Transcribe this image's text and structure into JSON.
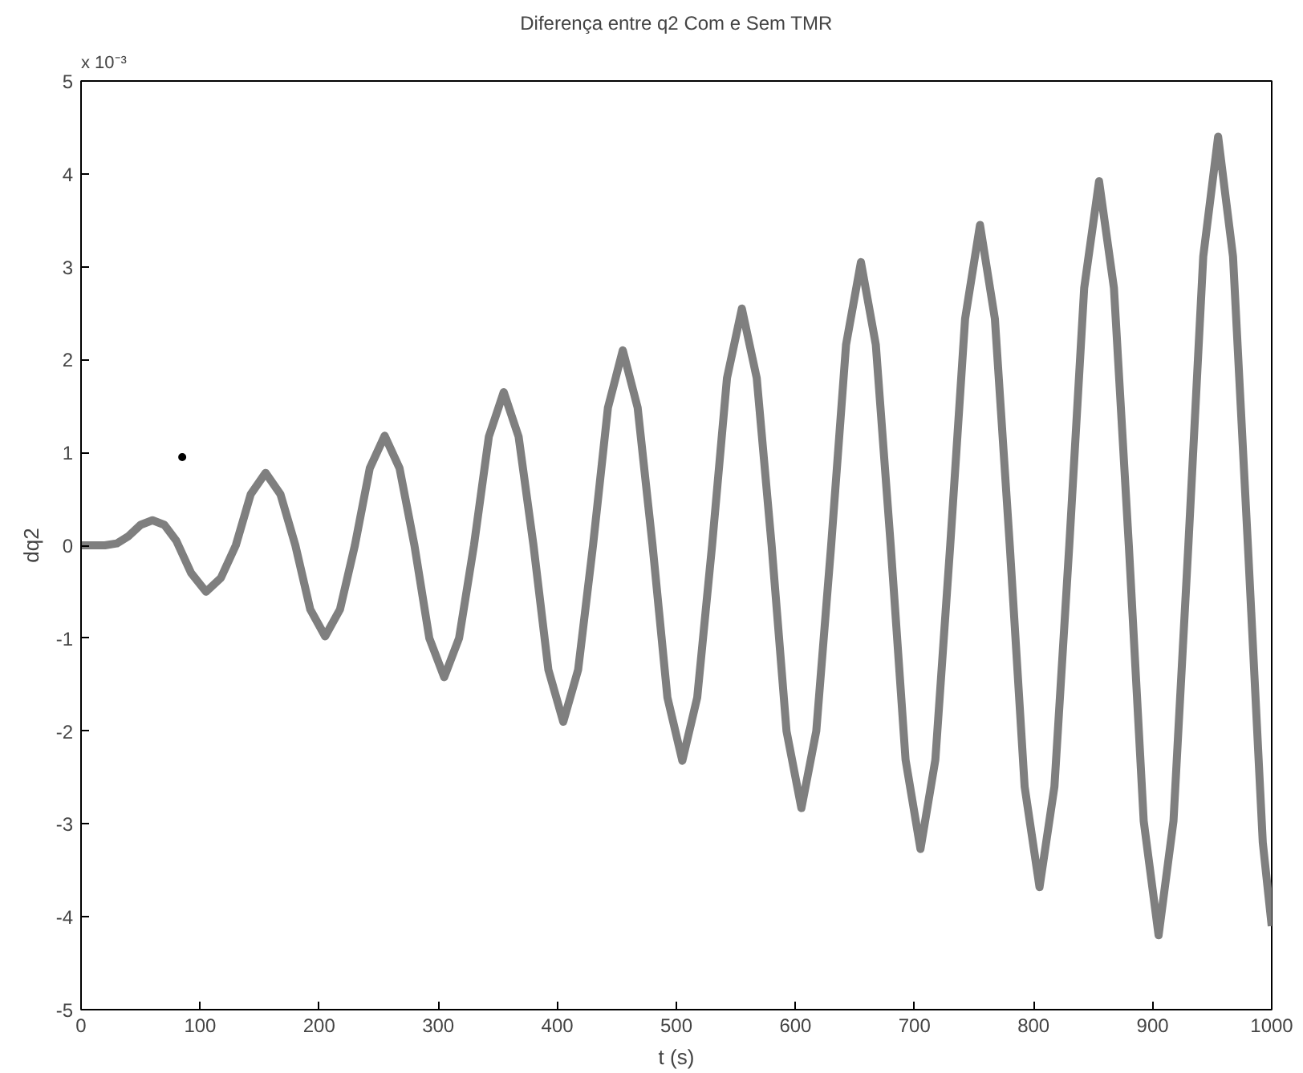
{
  "chart_data": {
    "type": "line",
    "title": "Diferença entre q2 Com e Sem TMR",
    "xlabel": "t (s)",
    "ylabel": "dq2",
    "annotations": [
      "x 10⁻³"
    ],
    "xlim": [
      0,
      1000
    ],
    "xticks": [
      0,
      100,
      200,
      300,
      400,
      500,
      600,
      700,
      800,
      900,
      1000
    ],
    "ylim": [
      -5,
      5
    ],
    "yticks": [
      -5,
      -4,
      -3,
      -2,
      -1,
      0,
      1,
      2,
      3,
      4,
      5
    ],
    "series": [
      {
        "color": "#7f7f7f",
        "x": [
          0,
          10,
          20,
          30,
          40,
          50,
          60,
          70,
          80,
          92.5,
          105,
          117.5,
          130,
          142.5,
          155,
          167.5,
          180,
          192.5,
          205,
          217.5,
          230,
          242.5,
          255,
          267.5,
          280,
          292.5,
          305,
          317.5,
          330,
          342.5,
          355,
          367.5,
          380,
          392.5,
          405,
          417.5,
          430,
          442.5,
          455,
          467.5,
          480,
          492.5,
          505,
          517.5,
          530,
          542.5,
          555,
          567.5,
          580,
          592.5,
          605,
          617.5,
          630,
          642.5,
          655,
          667.5,
          680,
          692.5,
          705,
          717.5,
          730,
          742.5,
          755,
          767.5,
          780,
          792.5,
          805,
          817.5,
          830,
          842.5,
          855,
          867.5,
          880,
          892.5,
          905,
          917.5,
          930,
          942.5,
          955,
          967.5,
          980,
          992.5,
          1000
        ],
        "values": [
          0,
          0,
          0,
          0.02,
          0.1,
          0.22,
          0.27,
          0.22,
          0.05,
          -0.3,
          -0.5,
          -0.35,
          0,
          0.55,
          0.78,
          0.55,
          0,
          -0.69,
          -0.98,
          -0.69,
          0,
          0.83,
          1.18,
          0.83,
          0,
          -1.0,
          -1.42,
          -1.0,
          0,
          1.17,
          1.65,
          1.17,
          0,
          -1.34,
          -1.9,
          -1.34,
          0,
          1.48,
          2.1,
          1.48,
          0,
          -1.64,
          -2.32,
          -1.64,
          0,
          1.8,
          2.55,
          1.8,
          0,
          -2.0,
          -2.83,
          -2.0,
          0,
          2.16,
          3.05,
          2.16,
          0,
          -2.31,
          -3.27,
          -2.31,
          0,
          2.44,
          3.45,
          2.44,
          0,
          -2.6,
          -3.68,
          -2.6,
          0,
          2.77,
          3.92,
          2.77,
          0,
          -2.97,
          -4.2,
          -2.97,
          0,
          3.11,
          4.4,
          3.11,
          0,
          -3.2,
          -4.1
        ]
      },
      {
        "type": "scatter",
        "marker": "circle",
        "color": "#000000",
        "x": [
          85
        ],
        "values": [
          0.95
        ]
      }
    ]
  }
}
